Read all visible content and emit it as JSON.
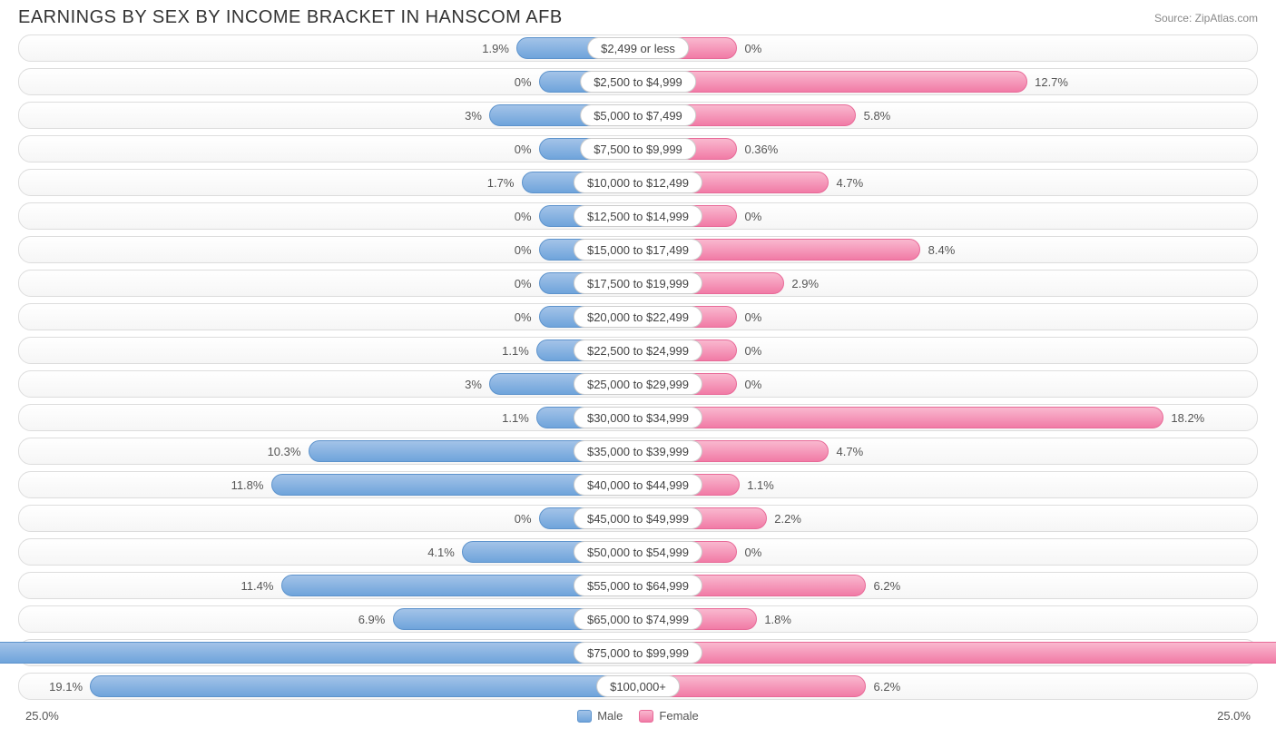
{
  "title": "EARNINGS BY SEX BY INCOME BRACKET IN HANSCOM AFB",
  "source": "Source: ZipAtlas.com",
  "axis_max": 25.0,
  "axis_left_label": "25.0%",
  "axis_right_label": "25.0%",
  "legend": {
    "male": "Male",
    "female": "Female"
  },
  "label_threshold_pct": 23.0,
  "pill_half_width_pct": 6.0,
  "min_bar_pct": 2.0,
  "colors": {
    "male_fill_top": "#a3c3e8",
    "male_fill_bottom": "#6fa4db",
    "male_border": "#5d93cc",
    "female_fill_top": "#f9b8cf",
    "female_fill_bottom": "#f17ba6",
    "female_border": "#e86a98",
    "track_border": "#dddddd",
    "text": "#555555",
    "title_color": "#333333",
    "source_color": "#888888",
    "background": "#ffffff"
  },
  "rows": [
    {
      "label": "$2,499 or less",
      "male": 1.9,
      "female": 0.0
    },
    {
      "label": "$2,500 to $4,999",
      "male": 0.0,
      "female": 12.7
    },
    {
      "label": "$5,000 to $7,499",
      "male": 3.0,
      "female": 5.8
    },
    {
      "label": "$7,500 to $9,999",
      "male": 0.0,
      "female": 0.36
    },
    {
      "label": "$10,000 to $12,499",
      "male": 1.7,
      "female": 4.7
    },
    {
      "label": "$12,500 to $14,999",
      "male": 0.0,
      "female": 0.0
    },
    {
      "label": "$15,000 to $17,499",
      "male": 0.0,
      "female": 8.4
    },
    {
      "label": "$17,500 to $19,999",
      "male": 0.0,
      "female": 2.9
    },
    {
      "label": "$20,000 to $22,499",
      "male": 0.0,
      "female": 0.0
    },
    {
      "label": "$22,500 to $24,999",
      "male": 1.1,
      "female": 0.0
    },
    {
      "label": "$25,000 to $29,999",
      "male": 3.0,
      "female": 0.0
    },
    {
      "label": "$30,000 to $34,999",
      "male": 1.1,
      "female": 18.2
    },
    {
      "label": "$35,000 to $39,999",
      "male": 10.3,
      "female": 4.7
    },
    {
      "label": "$40,000 to $44,999",
      "male": 11.8,
      "female": 1.1
    },
    {
      "label": "$45,000 to $49,999",
      "male": 0.0,
      "female": 2.2
    },
    {
      "label": "$50,000 to $54,999",
      "male": 4.1,
      "female": 0.0
    },
    {
      "label": "$55,000 to $64,999",
      "male": 11.4,
      "female": 6.2
    },
    {
      "label": "$65,000 to $74,999",
      "male": 6.9,
      "female": 1.8
    },
    {
      "label": "$75,000 to $99,999",
      "male": 24.7,
      "female": 24.7
    },
    {
      "label": "$100,000+",
      "male": 19.1,
      "female": 6.2
    }
  ]
}
